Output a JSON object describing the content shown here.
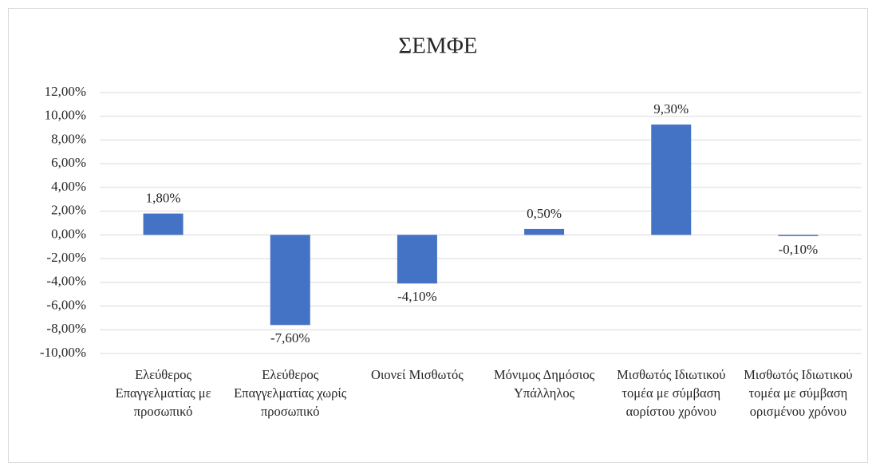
{
  "chart_data": {
    "type": "bar",
    "title": "ΣΕΜΦΕ",
    "categories": [
      "Ελεύθερος Επαγγελματίας με προσωπικό",
      "Ελεύθερος Επαγγελματίας χωρίς προσωπικό",
      "Οιονεί Μισθωτός",
      "Μόνιμος Δημόσιος Υπάλληλος",
      "Μισθωτός Ιδιωτικού τομέα με σύμβαση αορίστου χρόνου",
      "Μισθωτός Ιδιωτικού τομέα με σύμβαση ορισμένου χρόνου"
    ],
    "values": [
      1.8,
      -7.6,
      -4.1,
      0.5,
      9.3,
      -0.1
    ],
    "value_labels": [
      "1,80%",
      "-7,60%",
      "-4,10%",
      "0,50%",
      "9,30%",
      "-0,10%"
    ],
    "color": "#4472c4",
    "ylim": [
      -10,
      12
    ],
    "yticks": [
      {
        "value": -10,
        "label": "-10,00%"
      },
      {
        "value": -8,
        "label": "-8,00%"
      },
      {
        "value": -6,
        "label": "-6,00%"
      },
      {
        "value": -4,
        "label": "-4,00%"
      },
      {
        "value": -2,
        "label": "-2,00%"
      },
      {
        "value": 0,
        "label": "0,00%"
      },
      {
        "value": 2,
        "label": "2,00%"
      },
      {
        "value": 4,
        "label": "4,00%"
      },
      {
        "value": 6,
        "label": "6,00%"
      },
      {
        "value": 8,
        "label": "8,00%"
      },
      {
        "value": 10,
        "label": "10,00%"
      },
      {
        "value": 12,
        "label": "12,00%"
      }
    ],
    "grid": true
  }
}
